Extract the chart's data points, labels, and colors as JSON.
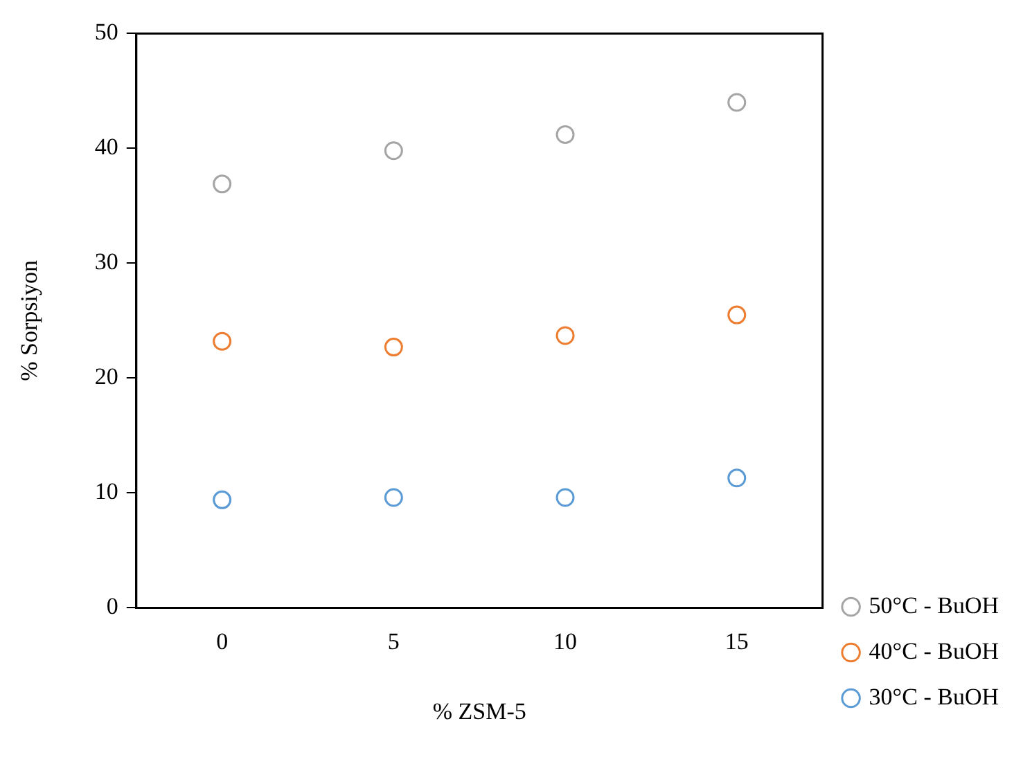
{
  "chart_data": {
    "type": "scatter",
    "xlabel": "% ZSM-5",
    "ylabel": "% Sorpsiyon",
    "x": [
      0,
      5,
      10,
      15
    ],
    "series": [
      {
        "name": "50°C - BuOH",
        "color": "#a5a5a5",
        "values": [
          36.9,
          39.8,
          41.2,
          44.0
        ]
      },
      {
        "name": "40°C - BuOH",
        "color": "#ed7d31",
        "values": [
          23.2,
          22.7,
          23.7,
          25.5
        ]
      },
      {
        "name": "30°C - BuOH",
        "color": "#5b9bd5",
        "values": [
          9.4,
          9.6,
          9.6,
          11.3
        ]
      }
    ],
    "xlim": [
      -2.5,
      17.5
    ],
    "xticks": [
      0,
      5,
      10,
      15
    ],
    "ylim": [
      0,
      50
    ],
    "yticks": [
      0,
      10,
      20,
      30,
      40,
      50
    ],
    "grid": false,
    "legend": "bottom right",
    "marker": "circle"
  }
}
